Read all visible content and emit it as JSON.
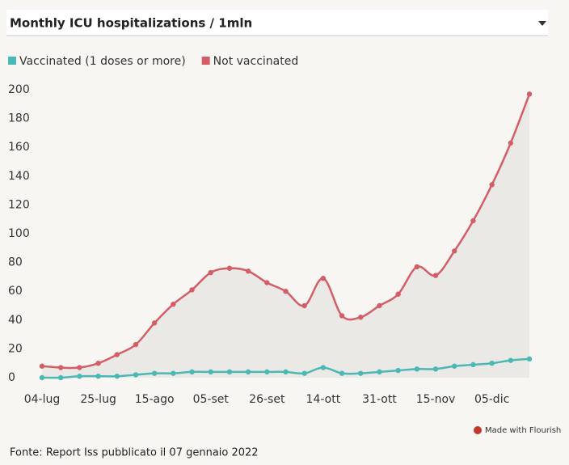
{
  "chart_data": {
    "type": "line",
    "title": "Monthly ICU hospitalizations / 1mln",
    "categories": [
      "04-lug",
      null,
      null,
      "25-lug",
      null,
      null,
      "15-ago",
      null,
      null,
      "05-set",
      null,
      null,
      "26-set",
      null,
      null,
      "14-ott",
      null,
      null,
      "31-ott",
      null,
      null,
      "15-nov",
      null,
      null,
      "05-dic",
      null,
      null
    ],
    "series": [
      {
        "name": "Vaccinated (1 doses or more)",
        "color": "#4cb8b4",
        "values": [
          0,
          0,
          1,
          1,
          1,
          2,
          3,
          3,
          4,
          4,
          4,
          4,
          4,
          4,
          3,
          7,
          3,
          3,
          4,
          5,
          6,
          6,
          8,
          9,
          10,
          12,
          13
        ]
      },
      {
        "name": "Not vaccinated",
        "color": "#d35e68",
        "values": [
          8,
          7,
          7,
          10,
          16,
          23,
          38,
          51,
          61,
          73,
          76,
          74,
          66,
          60,
          50,
          69,
          43,
          42,
          50,
          58,
          77,
          71,
          88,
          109,
          134,
          163,
          197
        ]
      }
    ],
    "ylim": [
      0,
      200
    ],
    "yticks": [
      0,
      20,
      40,
      60,
      80,
      100,
      120,
      140,
      160,
      180,
      200
    ],
    "credit": "Made with Flourish",
    "source": "Fonte: Report Iss pubblicato il 07 gennaio 2022"
  }
}
